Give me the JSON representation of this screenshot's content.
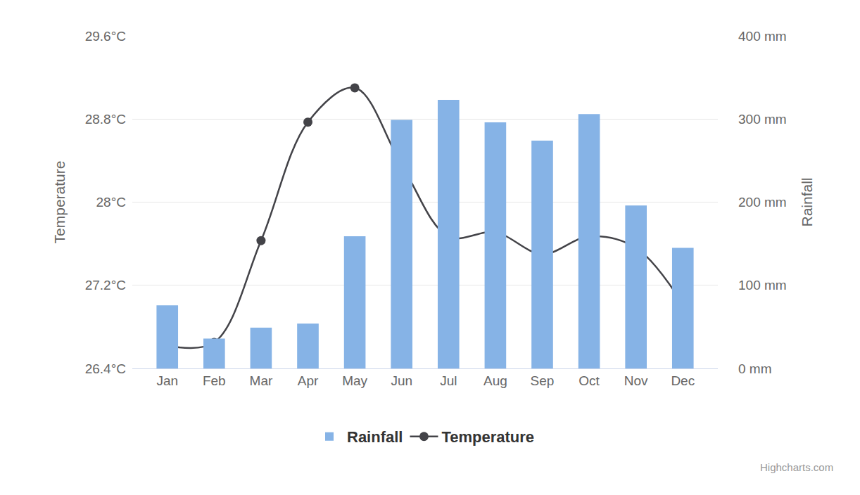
{
  "chart_data": {
    "type": "bar",
    "categories": [
      "Jan",
      "Feb",
      "Mar",
      "Apr",
      "May",
      "Jun",
      "Jul",
      "Aug",
      "Sep",
      "Oct",
      "Nov",
      "Dec"
    ],
    "series": [
      {
        "name": "Rainfall",
        "type": "bar",
        "axis": "y2",
        "color": "#86b3e6",
        "values": [
          76,
          36,
          49,
          54,
          159,
          299,
          323,
          296,
          274,
          306,
          196,
          145
        ]
      },
      {
        "name": "Temperature",
        "type": "line",
        "color": "#434348",
        "marker": "circle",
        "line_style": "solid",
        "values": [
          26.62,
          26.65,
          27.63,
          28.77,
          29.1,
          28.36,
          27.67,
          27.71,
          27.5,
          27.67,
          27.56,
          27.02
        ]
      }
    ],
    "y_label": "Temperature",
    "y2_label": "Rainfall",
    "ylim": [
      26.4,
      29.6
    ],
    "yticks": [
      {
        "value": 26.4,
        "label": "26.4°C"
      },
      {
        "value": 27.2,
        "label": "27.2°C"
      },
      {
        "value": 28,
        "label": "28°C"
      },
      {
        "value": 28.8,
        "label": "28.8°C"
      },
      {
        "value": 29.6,
        "label": "29.6°C"
      }
    ],
    "y2lim": [
      0,
      400
    ],
    "y2ticks": [
      {
        "value": 0,
        "label": "0 mm"
      },
      {
        "value": 100,
        "label": "100 mm"
      },
      {
        "value": 200,
        "label": "200 mm"
      },
      {
        "value": 300,
        "label": "300 mm"
      },
      {
        "value": 400,
        "label": "400 mm"
      }
    ],
    "grid": true,
    "legend": "bottom",
    "credit": "Highcharts.com"
  }
}
